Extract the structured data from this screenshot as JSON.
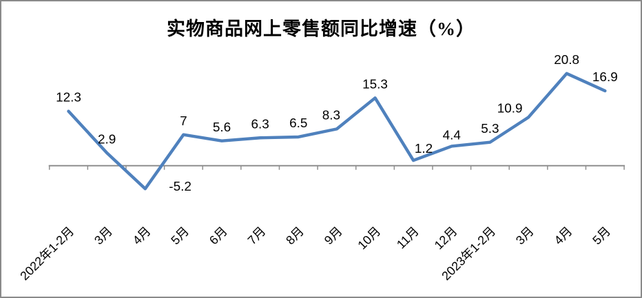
{
  "chart_data": {
    "type": "line",
    "title": "实物商品网上零售额同比增速（%）",
    "categories": [
      "2022年1-2月",
      "3月",
      "4月",
      "5月",
      "6月",
      "7月",
      "8月",
      "9月",
      "10月",
      "11月",
      "12月",
      "2023年1-2月",
      "3月",
      "4月",
      "5月"
    ],
    "values": [
      12.3,
      2.9,
      -5.2,
      7,
      5.6,
      6.3,
      6.5,
      8.3,
      15.3,
      1.2,
      4.4,
      5.3,
      10.9,
      20.8,
      16.9
    ],
    "data_labels": [
      "12.3",
      "2.9",
      "-5.2",
      "7",
      "5.6",
      "6.3",
      "6.5",
      "8.3",
      "15.3",
      "1.2",
      "4.4",
      "5.3",
      "10.9",
      "20.8",
      "16.9"
    ],
    "xlabel": "",
    "ylabel": "",
    "ylim": [
      -7,
      26
    ],
    "grid": false,
    "legend": "none",
    "x_tick_rotation": -45,
    "y_axis_visible": false,
    "line_color": "#4F81BD",
    "axis_color": "#8E8E8E",
    "text_color": "#000000",
    "frame_border_color": "#8A8A8A",
    "background_color": "#FFFFFF"
  }
}
